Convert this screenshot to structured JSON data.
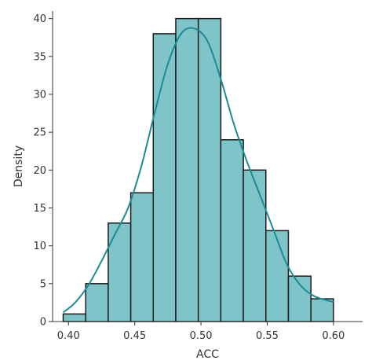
{
  "chart_data": {
    "type": "bar",
    "subtype": "histogram-with-kde",
    "xlabel": "ACC",
    "ylabel": "Density",
    "xlim": [
      0.388,
      0.622
    ],
    "ylim": [
      0,
      41
    ],
    "xticks": [
      0.4,
      0.45,
      0.5,
      0.55,
      0.6
    ],
    "xtick_labels": [
      "0.40",
      "0.45",
      "0.50",
      "0.55",
      "0.60"
    ],
    "yticks": [
      0,
      5,
      10,
      15,
      20,
      25,
      30,
      35,
      40
    ],
    "ytick_labels": [
      "0",
      "5",
      "10",
      "15",
      "20",
      "25",
      "30",
      "35",
      "40"
    ],
    "grid": false,
    "bins": [
      {
        "x0": 0.396,
        "x1": 0.413,
        "density": 1
      },
      {
        "x0": 0.413,
        "x1": 0.43,
        "density": 5
      },
      {
        "x0": 0.43,
        "x1": 0.447,
        "density": 13
      },
      {
        "x0": 0.447,
        "x1": 0.464,
        "density": 17
      },
      {
        "x0": 0.464,
        "x1": 0.481,
        "density": 38
      },
      {
        "x0": 0.481,
        "x1": 0.498,
        "density": 40
      },
      {
        "x0": 0.498,
        "x1": 0.515,
        "density": 40
      },
      {
        "x0": 0.515,
        "x1": 0.532,
        "density": 24
      },
      {
        "x0": 0.532,
        "x1": 0.549,
        "density": 20
      },
      {
        "x0": 0.549,
        "x1": 0.566,
        "density": 12
      },
      {
        "x0": 0.566,
        "x1": 0.583,
        "density": 6
      },
      {
        "x0": 0.583,
        "x1": 0.6,
        "density": 3
      }
    ],
    "kde": {
      "x": [
        0.396,
        0.405,
        0.415,
        0.425,
        0.435,
        0.445,
        0.455,
        0.465,
        0.475,
        0.485,
        0.495,
        0.505,
        0.515,
        0.525,
        0.535,
        0.545,
        0.555,
        0.565,
        0.575,
        0.585,
        0.595,
        0.6
      ],
      "y": [
        1.2,
        2.5,
        4.8,
        8.0,
        11.5,
        15.0,
        20.5,
        27.5,
        34.0,
        38.0,
        38.7,
        37.0,
        32.0,
        26.0,
        21.0,
        16.5,
        12.0,
        7.5,
        4.8,
        3.4,
        2.8,
        2.6
      ]
    },
    "colors": {
      "bar_fill": "#7fc4c9",
      "bar_edge": "#1a1a1a",
      "kde_line": "#1a8c94",
      "axis": "#333333"
    }
  }
}
